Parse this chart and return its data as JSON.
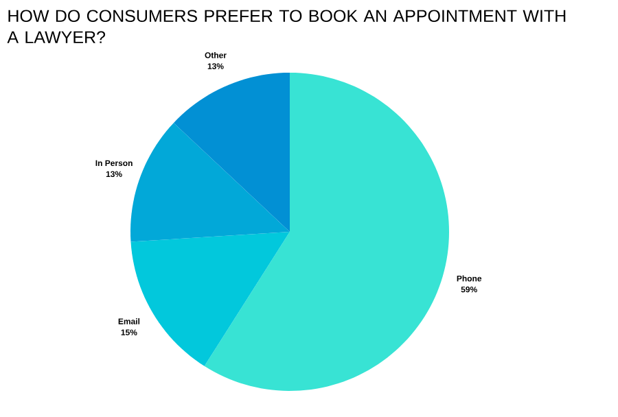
{
  "chart_data": {
    "type": "pie",
    "title": "HOW DO CONSUMERS PREFER TO BOOK AN APPOINTMENT WITH A LAWYER?",
    "categories": [
      "Phone",
      "Email",
      "In Person",
      "Other"
    ],
    "values": [
      59,
      15,
      13,
      13
    ],
    "colors": [
      "#38e3d4",
      "#02c8dc",
      "#02a8d8",
      "#0290d4"
    ],
    "value_labels": [
      "59%",
      "15%",
      "13%",
      "13%"
    ]
  }
}
